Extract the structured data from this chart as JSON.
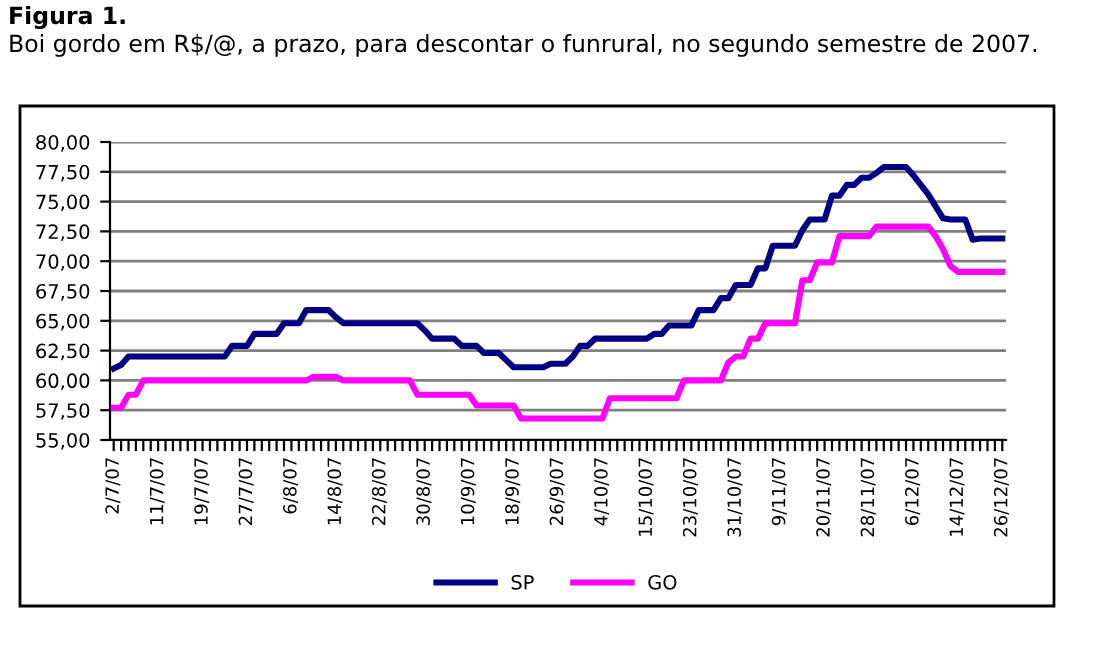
{
  "chart_data": {
    "type": "line",
    "title": "Figura 1.",
    "subtitle": "Boi gordo em R$/@, a prazo, para descontar o funrural, no segundo semestre de 2007.",
    "categories": [
      "2/7/07",
      null,
      null,
      null,
      null,
      null,
      "11/7/07",
      null,
      null,
      null,
      null,
      null,
      "19/7/07",
      null,
      null,
      null,
      null,
      null,
      "27/7/07",
      null,
      null,
      null,
      null,
      null,
      "6/8/07",
      null,
      null,
      null,
      null,
      null,
      "14/8/07",
      null,
      null,
      null,
      null,
      null,
      "22/8/07",
      null,
      null,
      null,
      null,
      null,
      "30/8/07",
      null,
      null,
      null,
      null,
      null,
      "10/9/07",
      null,
      null,
      null,
      null,
      null,
      "18/9/07",
      null,
      null,
      null,
      null,
      null,
      "26/9/07",
      null,
      null,
      null,
      null,
      null,
      "4/10/07",
      null,
      null,
      null,
      null,
      null,
      "15/10/07",
      null,
      null,
      null,
      null,
      null,
      "23/10/07",
      null,
      null,
      null,
      null,
      null,
      "31/10/07",
      null,
      null,
      null,
      null,
      null,
      "9/11/07",
      null,
      null,
      null,
      null,
      null,
      "20/11/07",
      null,
      null,
      null,
      null,
      null,
      "28/11/07",
      null,
      null,
      null,
      null,
      null,
      "6/12/07",
      null,
      null,
      null,
      null,
      null,
      "14/12/07",
      null,
      null,
      null,
      null,
      null,
      "26/12/07"
    ],
    "series": [
      {
        "name": "SP",
        "color": "#000080",
        "values": [
          61.0,
          61.3,
          62.0,
          62.0,
          62.0,
          62.0,
          62.0,
          62.0,
          62.0,
          62.0,
          62.0,
          62.0,
          62.0,
          62.0,
          62.0,
          62.0,
          62.9,
          62.9,
          62.9,
          63.9,
          63.9,
          63.9,
          63.9,
          64.8,
          64.8,
          64.8,
          65.9,
          65.9,
          65.9,
          65.9,
          65.3,
          64.8,
          64.8,
          64.8,
          64.8,
          64.8,
          64.8,
          64.8,
          64.8,
          64.8,
          64.8,
          64.8,
          64.2,
          63.5,
          63.5,
          63.5,
          63.5,
          62.9,
          62.9,
          62.9,
          62.3,
          62.3,
          62.3,
          61.7,
          61.1,
          61.1,
          61.1,
          61.1,
          61.1,
          61.4,
          61.4,
          61.4,
          62.0,
          62.9,
          62.9,
          63.5,
          63.5,
          63.5,
          63.5,
          63.5,
          63.5,
          63.5,
          63.5,
          63.9,
          63.9,
          64.6,
          64.6,
          64.6,
          64.6,
          65.9,
          65.9,
          65.9,
          66.9,
          66.9,
          68.0,
          68.0,
          68.0,
          69.4,
          69.4,
          71.3,
          71.3,
          71.3,
          71.3,
          72.6,
          73.5,
          73.5,
          73.5,
          75.5,
          75.5,
          76.4,
          76.4,
          77.0,
          77.0,
          77.4,
          77.9,
          77.9,
          77.9,
          77.9,
          77.2,
          76.4,
          75.6,
          74.6,
          73.6,
          73.5,
          73.5,
          73.5,
          71.8,
          71.9,
          71.9,
          71.9,
          71.9
        ]
      },
      {
        "name": "GO",
        "color": "#ff00ff",
        "values": [
          57.7,
          57.7,
          58.8,
          58.8,
          60.0,
          60.0,
          60.0,
          60.0,
          60.0,
          60.0,
          60.0,
          60.0,
          60.0,
          60.0,
          60.0,
          60.0,
          60.0,
          60.0,
          60.0,
          60.0,
          60.0,
          60.0,
          60.0,
          60.0,
          60.0,
          60.0,
          60.0,
          60.3,
          60.3,
          60.3,
          60.3,
          60.0,
          60.0,
          60.0,
          60.0,
          60.0,
          60.0,
          60.0,
          60.0,
          60.0,
          60.0,
          58.8,
          58.8,
          58.8,
          58.8,
          58.8,
          58.8,
          58.8,
          58.8,
          57.9,
          57.9,
          57.9,
          57.9,
          57.9,
          57.9,
          56.8,
          56.8,
          56.8,
          56.8,
          56.8,
          56.8,
          56.8,
          56.8,
          56.8,
          56.8,
          56.8,
          56.8,
          58.5,
          58.5,
          58.5,
          58.5,
          58.5,
          58.5,
          58.5,
          58.5,
          58.5,
          58.5,
          60.0,
          60.0,
          60.0,
          60.0,
          60.0,
          60.0,
          61.5,
          62.0,
          62.0,
          63.5,
          63.5,
          64.8,
          64.8,
          64.8,
          64.8,
          64.8,
          68.4,
          68.4,
          69.9,
          69.9,
          69.9,
          72.1,
          72.1,
          72.1,
          72.1,
          72.1,
          72.9,
          72.9,
          72.9,
          72.9,
          72.9,
          72.9,
          72.9,
          72.9,
          72.1,
          71.0,
          69.6,
          69.1,
          69.1,
          69.1,
          69.1,
          69.1,
          69.1,
          69.1
        ]
      }
    ],
    "ylim": [
      55,
      80
    ],
    "yticks": [
      {
        "value": 55,
        "label": "55,00"
      },
      {
        "value": 57.5,
        "label": "57,50"
      },
      {
        "value": 60,
        "label": "60,00"
      },
      {
        "value": 62.5,
        "label": "62,50"
      },
      {
        "value": 65,
        "label": "65,00"
      },
      {
        "value": 67.5,
        "label": "67,50"
      },
      {
        "value": 70,
        "label": "70,00"
      },
      {
        "value": 72.5,
        "label": "72,50"
      },
      {
        "value": 75,
        "label": "75,00"
      },
      {
        "value": 77.5,
        "label": "77,50"
      },
      {
        "value": 80,
        "label": "80,00"
      }
    ],
    "grid": "y",
    "legend": "bottom",
    "marker": "none",
    "line_style": "solid"
  }
}
